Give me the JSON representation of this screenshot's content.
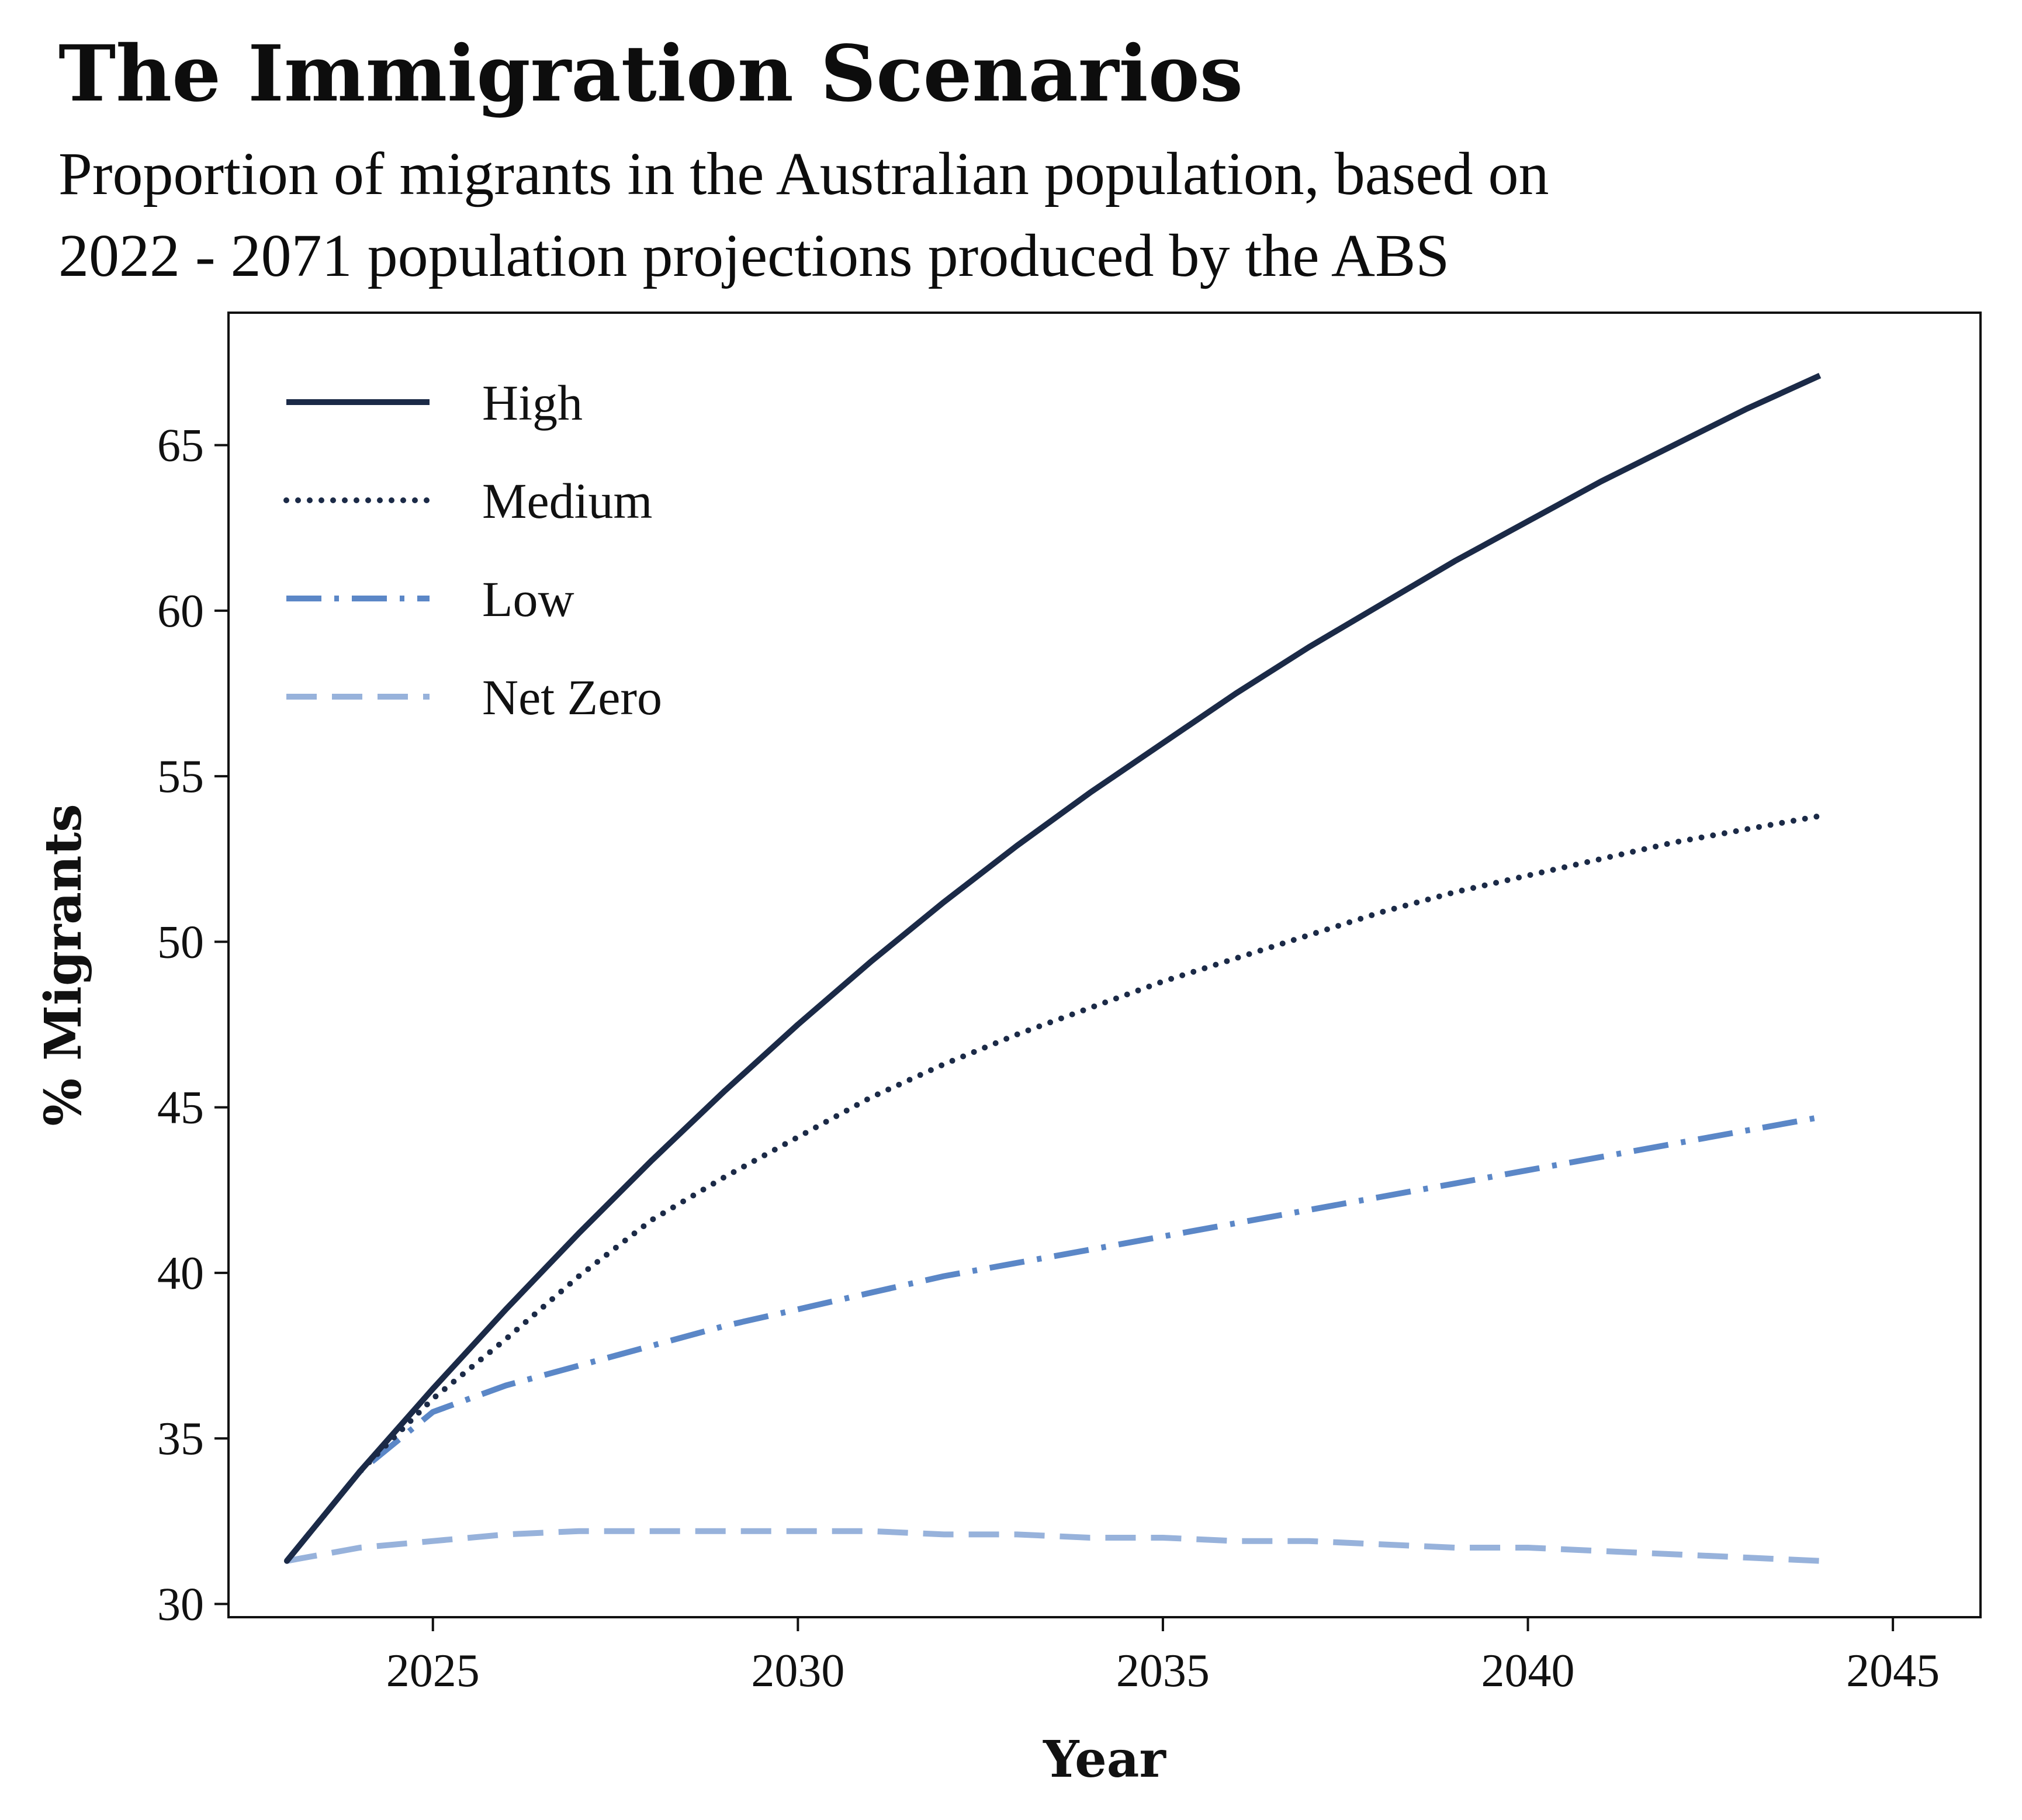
{
  "title": "The Immigration Scenarios",
  "subtitle_lines": [
    "Proportion of migrants in the Australian population, based on",
    "2022 - 2071 population projections produced by the ABS"
  ],
  "colors": {
    "high": "#1b2a47",
    "medium": "#1b2a47",
    "low": "#5b87c7",
    "net_zero": "#97b2db",
    "axis": "#111111"
  },
  "chart_data": {
    "type": "line",
    "title": "The Immigration Scenarios",
    "subtitle": "Proportion of migrants in the Australian population, based on 2022 - 2071 population projections produced by the ABS",
    "xlabel": "Year",
    "ylabel": "% Migrants",
    "xlim": [
      2022.2,
      2046.2
    ],
    "ylim": [
      29.6,
      69.0
    ],
    "xticks": [
      2025,
      2030,
      2035,
      2040,
      2045
    ],
    "yticks": [
      30,
      35,
      40,
      45,
      50,
      55,
      60,
      65
    ],
    "grid": false,
    "legend_position": "top-left",
    "x": [
      2023,
      2024,
      2025,
      2026,
      2027,
      2028,
      2029,
      2030,
      2031,
      2032,
      2033,
      2034,
      2035,
      2036,
      2037,
      2038,
      2039,
      2040,
      2041,
      2042,
      2043,
      2044
    ],
    "series": [
      {
        "name": "High",
        "style": "solid",
        "color": "#1b2a47",
        "values": [
          31.3,
          34.0,
          36.5,
          38.9,
          41.2,
          43.4,
          45.5,
          47.5,
          49.4,
          51.2,
          52.9,
          54.5,
          56.0,
          57.5,
          58.9,
          60.2,
          61.5,
          62.7,
          63.9,
          65.0,
          66.1,
          67.1
        ]
      },
      {
        "name": "Medium",
        "style": "dotted",
        "color": "#1b2a47",
        "values": [
          31.3,
          34.0,
          36.2,
          38.0,
          39.9,
          41.6,
          42.9,
          44.1,
          45.3,
          46.3,
          47.2,
          48.0,
          48.8,
          49.5,
          50.2,
          50.9,
          51.5,
          52.0,
          52.5,
          53.0,
          53.4,
          53.8
        ]
      },
      {
        "name": "Low",
        "style": "dash-dot",
        "color": "#5b87c7",
        "values": [
          31.3,
          34.0,
          35.8,
          36.6,
          37.2,
          37.8,
          38.4,
          38.9,
          39.4,
          39.9,
          40.3,
          40.7,
          41.1,
          41.5,
          41.9,
          42.3,
          42.7,
          43.1,
          43.5,
          43.9,
          44.3,
          44.7
        ]
      },
      {
        "name": "Net Zero",
        "style": "dashed",
        "color": "#97b2db",
        "values": [
          31.3,
          31.7,
          31.9,
          32.1,
          32.2,
          32.2,
          32.2,
          32.2,
          32.2,
          32.1,
          32.1,
          32.0,
          32.0,
          31.9,
          31.9,
          31.8,
          31.7,
          31.7,
          31.6,
          31.5,
          31.4,
          31.3
        ]
      }
    ]
  }
}
